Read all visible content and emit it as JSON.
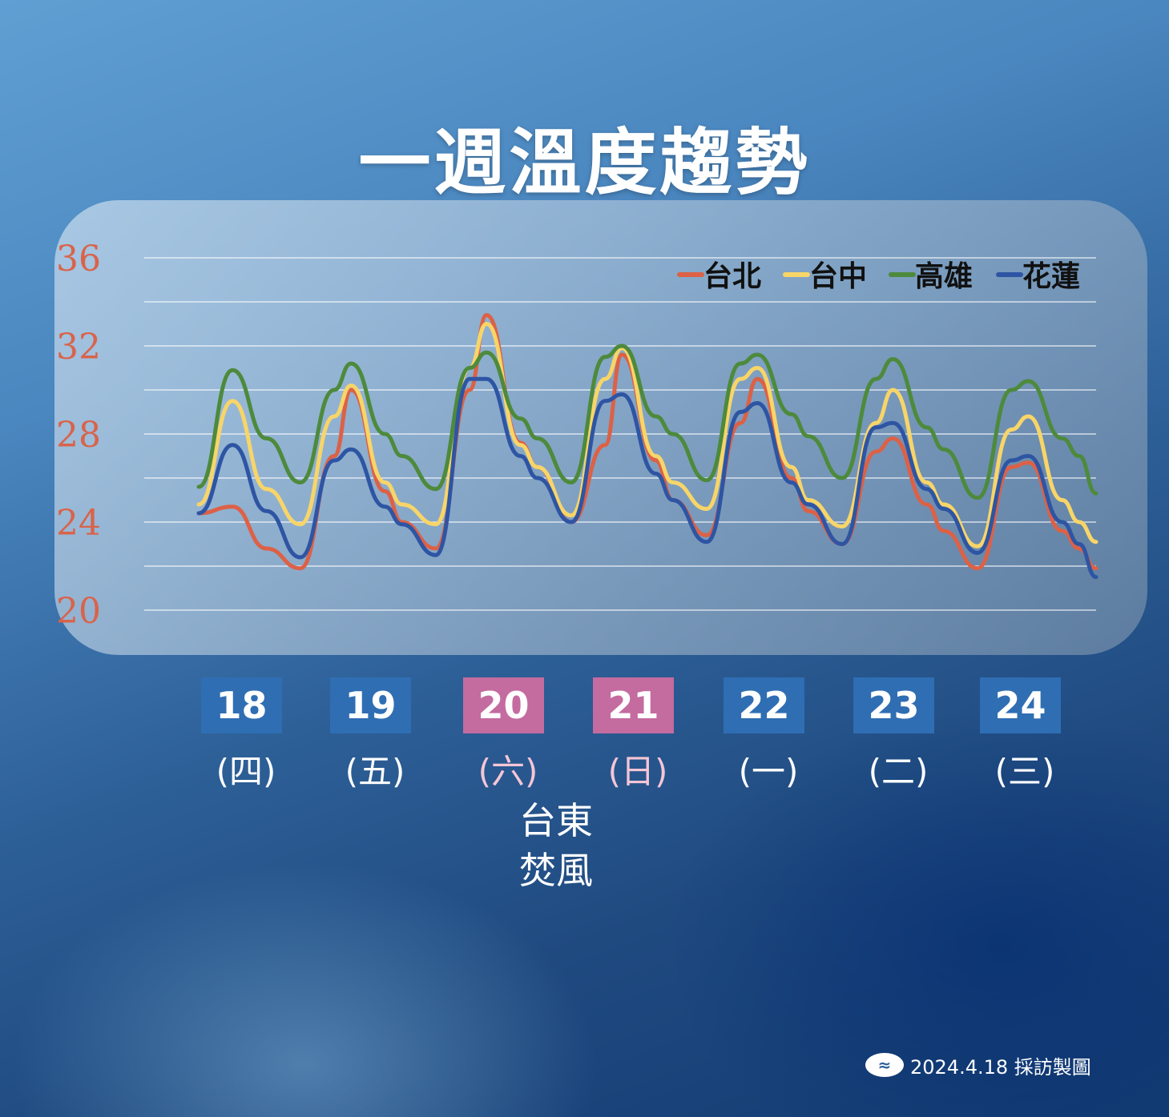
{
  "title": "一週溫度趨勢",
  "chart_data": {
    "type": "line",
    "title": "一週溫度趨勢",
    "y_ticks": [
      "36",
      "32",
      "28",
      "24",
      "20"
    ],
    "ylim": [
      20,
      36
    ],
    "grid": "horizontal lines every 2",
    "legend_position": "top-right",
    "x_unit": "hour",
    "x_note": "each day spans 24 hours; x is hours from day 18 00:00",
    "series": [
      {
        "name": "台北",
        "color": "#dc6146",
        "points": [
          [
            0,
            24.4
          ],
          [
            8,
            24.7
          ],
          [
            16,
            22.8
          ],
          [
            24,
            21.9
          ],
          [
            32,
            27.0
          ],
          [
            36,
            30.0
          ],
          [
            44,
            25.4
          ],
          [
            48,
            24.0
          ],
          [
            56,
            22.8
          ],
          [
            64,
            30.0
          ],
          [
            68,
            33.4
          ],
          [
            76,
            27.6
          ],
          [
            80,
            26.5
          ],
          [
            88,
            24.0
          ],
          [
            96,
            27.5
          ],
          [
            100,
            31.6
          ],
          [
            108,
            26.8
          ],
          [
            112,
            25.0
          ],
          [
            120,
            23.4
          ],
          [
            128,
            28.5
          ],
          [
            132,
            30.5
          ],
          [
            140,
            26.0
          ],
          [
            144,
            24.5
          ],
          [
            152,
            23.0
          ],
          [
            160,
            27.2
          ],
          [
            164,
            27.8
          ],
          [
            172,
            24.8
          ],
          [
            176,
            23.6
          ],
          [
            184,
            21.9
          ],
          [
            192,
            26.5
          ],
          [
            196,
            26.7
          ],
          [
            204,
            23.6
          ],
          [
            208,
            22.8
          ],
          [
            212,
            21.9
          ]
        ]
      },
      {
        "name": "台中",
        "color": "#f8d568",
        "points": [
          [
            0,
            24.8
          ],
          [
            8,
            29.5
          ],
          [
            16,
            25.5
          ],
          [
            24,
            23.9
          ],
          [
            32,
            28.8
          ],
          [
            36,
            30.2
          ],
          [
            44,
            25.8
          ],
          [
            48,
            24.8
          ],
          [
            56,
            23.9
          ],
          [
            64,
            31.0
          ],
          [
            68,
            33.0
          ],
          [
            76,
            27.5
          ],
          [
            80,
            26.5
          ],
          [
            88,
            24.3
          ],
          [
            96,
            30.5
          ],
          [
            100,
            31.9
          ],
          [
            108,
            27.0
          ],
          [
            112,
            25.8
          ],
          [
            120,
            24.6
          ],
          [
            128,
            30.5
          ],
          [
            132,
            31.0
          ],
          [
            140,
            26.5
          ],
          [
            144,
            25.0
          ],
          [
            152,
            23.8
          ],
          [
            160,
            28.5
          ],
          [
            164,
            30.0
          ],
          [
            172,
            25.8
          ],
          [
            176,
            24.8
          ],
          [
            184,
            22.9
          ],
          [
            192,
            28.2
          ],
          [
            196,
            28.8
          ],
          [
            204,
            25.0
          ],
          [
            208,
            24.0
          ],
          [
            212,
            23.1
          ]
        ]
      },
      {
        "name": "高雄",
        "color": "#4d8a3c",
        "points": [
          [
            0,
            25.6
          ],
          [
            8,
            30.9
          ],
          [
            16,
            27.8
          ],
          [
            24,
            25.8
          ],
          [
            32,
            30.0
          ],
          [
            36,
            31.2
          ],
          [
            44,
            28.0
          ],
          [
            48,
            27.0
          ],
          [
            56,
            25.5
          ],
          [
            64,
            31.0
          ],
          [
            68,
            31.7
          ],
          [
            76,
            28.7
          ],
          [
            80,
            27.8
          ],
          [
            88,
            25.8
          ],
          [
            96,
            31.5
          ],
          [
            100,
            32.0
          ],
          [
            108,
            28.8
          ],
          [
            112,
            28.0
          ],
          [
            120,
            25.9
          ],
          [
            128,
            31.2
          ],
          [
            132,
            31.6
          ],
          [
            140,
            28.9
          ],
          [
            144,
            27.9
          ],
          [
            152,
            26.0
          ],
          [
            160,
            30.5
          ],
          [
            164,
            31.4
          ],
          [
            172,
            28.3
          ],
          [
            176,
            27.3
          ],
          [
            184,
            25.1
          ],
          [
            192,
            30.0
          ],
          [
            196,
            30.4
          ],
          [
            204,
            27.8
          ],
          [
            208,
            27.0
          ],
          [
            212,
            25.3
          ]
        ]
      },
      {
        "name": "花蓮",
        "color": "#2e55a3",
        "points": [
          [
            0,
            24.4
          ],
          [
            8,
            27.5
          ],
          [
            16,
            24.5
          ],
          [
            24,
            22.4
          ],
          [
            32,
            26.8
          ],
          [
            36,
            27.3
          ],
          [
            44,
            24.7
          ],
          [
            48,
            23.9
          ],
          [
            56,
            22.5
          ],
          [
            64,
            30.5
          ],
          [
            68,
            30.5
          ],
          [
            76,
            27.0
          ],
          [
            80,
            26.0
          ],
          [
            88,
            24.0
          ],
          [
            96,
            29.5
          ],
          [
            100,
            29.8
          ],
          [
            108,
            26.2
          ],
          [
            112,
            25.0
          ],
          [
            120,
            23.1
          ],
          [
            128,
            29.0
          ],
          [
            132,
            29.4
          ],
          [
            140,
            25.8
          ],
          [
            144,
            24.8
          ],
          [
            152,
            23.0
          ],
          [
            160,
            28.3
          ],
          [
            164,
            28.5
          ],
          [
            172,
            25.5
          ],
          [
            176,
            24.6
          ],
          [
            184,
            22.6
          ],
          [
            192,
            26.8
          ],
          [
            196,
            27.0
          ],
          [
            204,
            24.0
          ],
          [
            208,
            23.0
          ],
          [
            212,
            21.5
          ]
        ]
      }
    ]
  },
  "days": [
    {
      "date": "18",
      "weekday": "(四)",
      "style": "blue"
    },
    {
      "date": "19",
      "weekday": "(五)",
      "style": "blue"
    },
    {
      "date": "20",
      "weekday": "(六)",
      "style": "pink"
    },
    {
      "date": "21",
      "weekday": "(日)",
      "style": "pink"
    },
    {
      "date": "22",
      "weekday": "(一)",
      "style": "blue"
    },
    {
      "date": "23",
      "weekday": "(二)",
      "style": "blue"
    },
    {
      "date": "24",
      "weekday": "(三)",
      "style": "blue"
    }
  ],
  "note": {
    "line1": "台東",
    "line2": "焚風"
  },
  "footer": {
    "logo_icon": "cwa-logo-icon",
    "text": "2024.4.18 採訪製圖"
  },
  "colors": {
    "accent_blue": "#2f6eb3",
    "accent_pink": "#c46b9f",
    "axis_label": "#d9634a"
  }
}
